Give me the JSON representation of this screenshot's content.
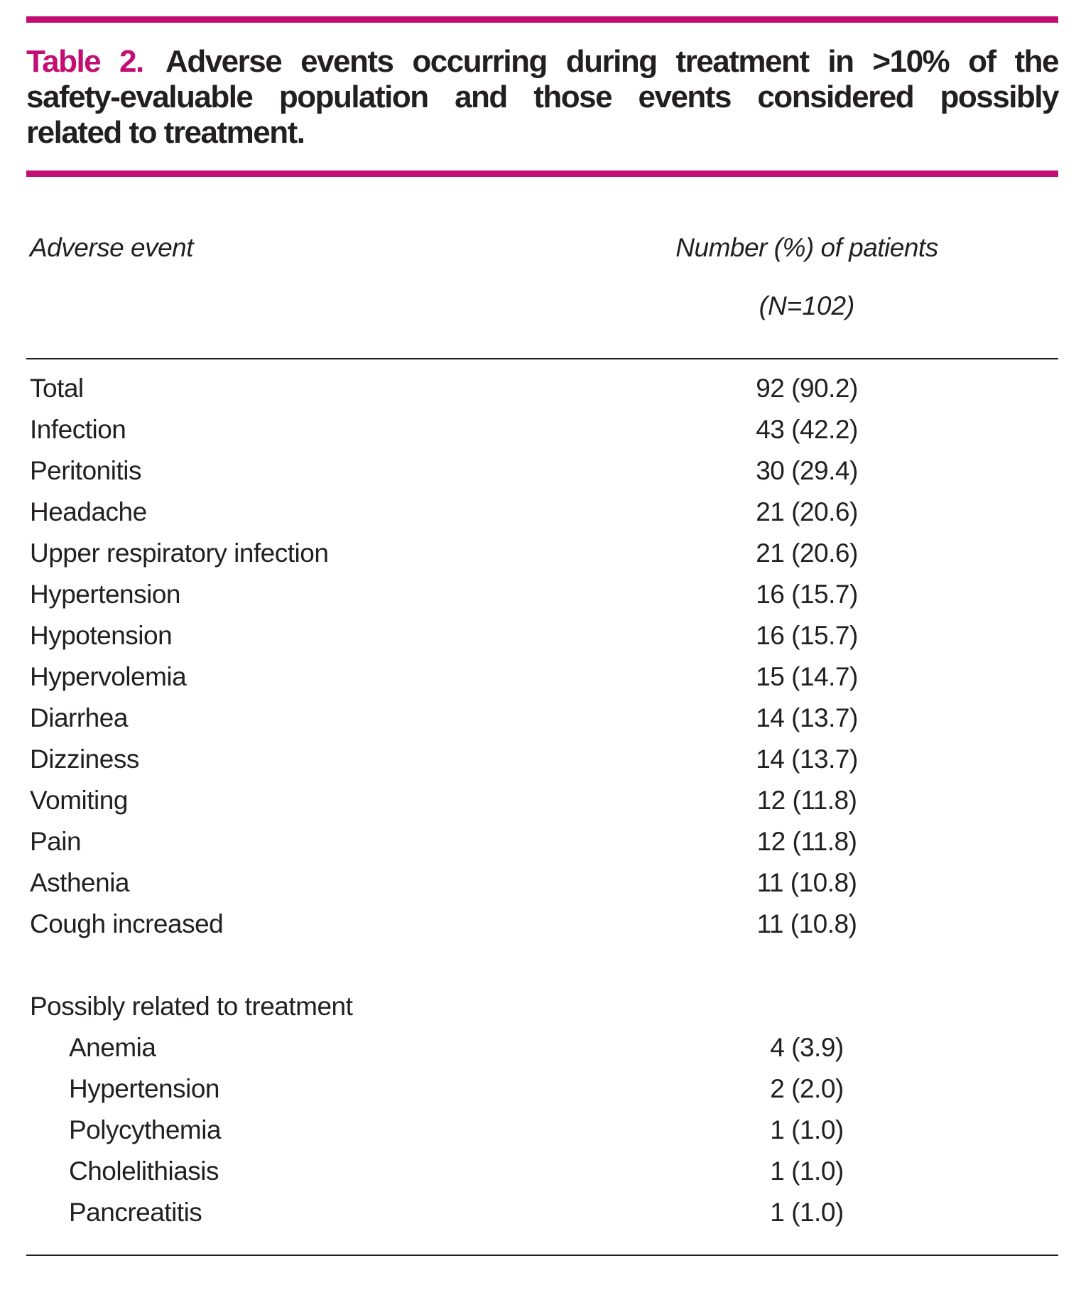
{
  "colors": {
    "accent": "#c30d74",
    "text": "#231f20"
  },
  "title": {
    "label": "Table 2.",
    "line1": "Adverse events occurring during treatment in >10% of the",
    "line2": "safety-evaluable population and those events considered possibly",
    "line3": "related to treatment."
  },
  "table": {
    "col1_header": "Adverse event",
    "col2_header": "Number (%) of patients",
    "col2_subheader": "(N=102)",
    "rows": [
      {
        "label": "Total",
        "value": "92 (90.2)"
      },
      {
        "label": "Infection",
        "value": "43 (42.2)"
      },
      {
        "label": "Peritonitis",
        "value": "30 (29.4)"
      },
      {
        "label": "Headache",
        "value": "21 (20.6)"
      },
      {
        "label": "Upper respiratory infection",
        "value": "21 (20.6)"
      },
      {
        "label": "Hypertension",
        "value": "16 (15.7)"
      },
      {
        "label": "Hypotension",
        "value": "16 (15.7)"
      },
      {
        "label": "Hypervolemia",
        "value": "15 (14.7)"
      },
      {
        "label": "Diarrhea",
        "value": "14 (13.7)"
      },
      {
        "label": "Dizziness",
        "value": "14 (13.7)"
      },
      {
        "label": "Vomiting",
        "value": "12 (11.8)"
      },
      {
        "label": "Pain",
        "value": "12 (11.8)"
      },
      {
        "label": "Asthenia",
        "value": "11 (10.8)"
      },
      {
        "label": "Cough increased",
        "value": "11 (10.8)"
      }
    ],
    "section": {
      "header": "Possibly related to treatment",
      "rows": [
        {
          "label": "Anemia",
          "value": "4 (3.9)"
        },
        {
          "label": "Hypertension",
          "value": "2 (2.0)"
        },
        {
          "label": "Polycythemia",
          "value": "1 (1.0)"
        },
        {
          "label": "Cholelithiasis",
          "value": "1 (1.0)"
        },
        {
          "label": "Pancreatitis",
          "value": "1 (1.0)"
        }
      ]
    }
  }
}
